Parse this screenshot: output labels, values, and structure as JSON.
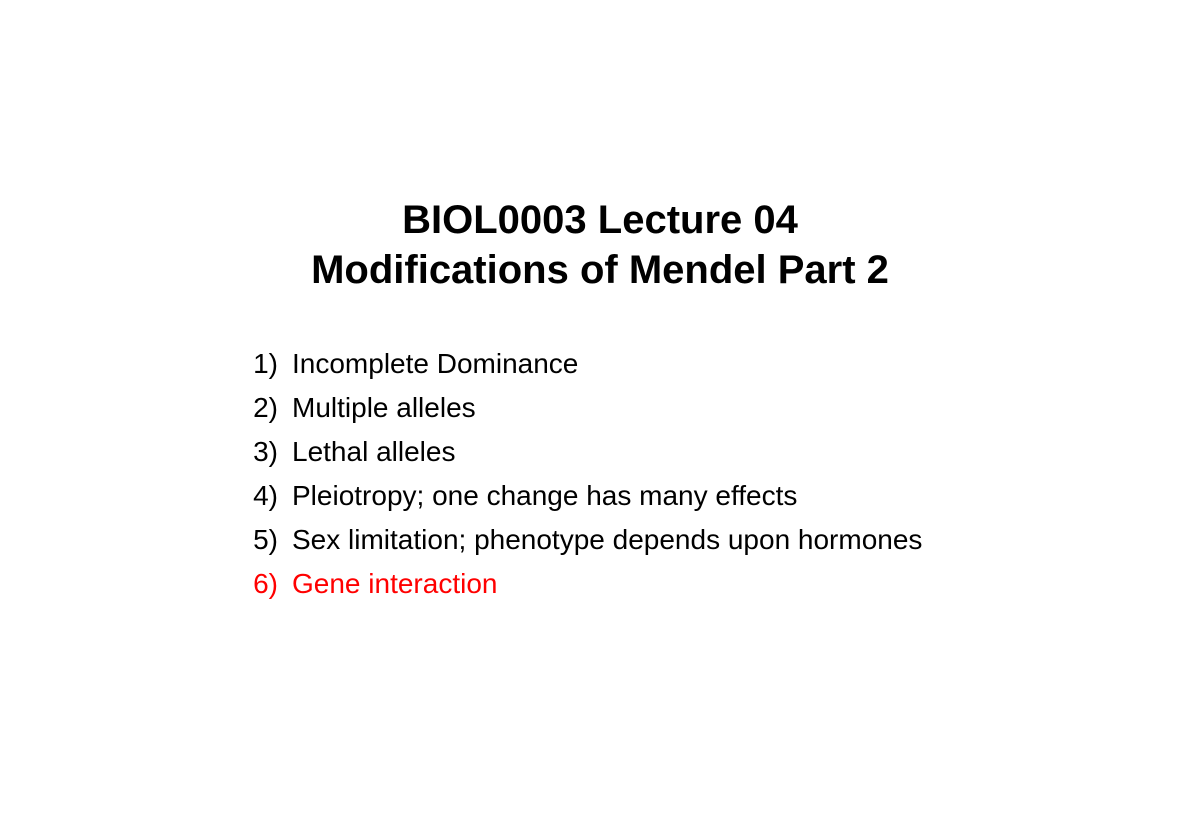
{
  "slide": {
    "title_line1": "BIOL0003 Lecture 04",
    "title_line2": "Modifications of Mendel Part 2",
    "title_fontsize": 40,
    "title_fontweight": "bold",
    "title_color": "#000000",
    "list_fontsize": 28,
    "list_default_color": "#000000",
    "highlight_color": "#ff0000",
    "background_color": "#ffffff",
    "items": [
      {
        "number": "1)",
        "text": "Incomplete Dominance",
        "highlighted": false
      },
      {
        "number": "2)",
        "text": "Multiple alleles",
        "highlighted": false
      },
      {
        "number": "3)",
        "text": "Lethal alleles",
        "highlighted": false
      },
      {
        "number": "4)",
        "text": "Pleiotropy; one change has many effects",
        "highlighted": false
      },
      {
        "number": "5)",
        "text": "Sex limitation; phenotype depends upon hormones",
        "highlighted": false
      },
      {
        "number": "6)",
        "text": "Gene interaction",
        "highlighted": true
      }
    ]
  }
}
